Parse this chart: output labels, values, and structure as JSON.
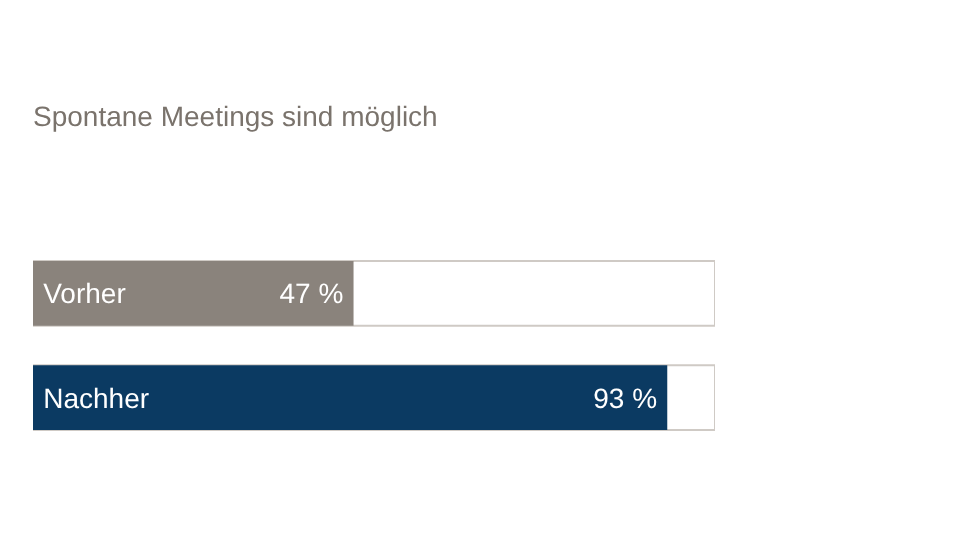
{
  "chart_data": {
    "type": "bar",
    "orientation": "horizontal",
    "title": "Spontane Meetings sind möglich",
    "categories": [
      "Vorher",
      "Nachher"
    ],
    "values": [
      47,
      93
    ],
    "colors": [
      "#8a837c",
      "#0b3a62"
    ],
    "value_labels": [
      "47 %",
      "93 %"
    ],
    "xlim": [
      0,
      100
    ],
    "grid": false,
    "tick_labels": false
  }
}
